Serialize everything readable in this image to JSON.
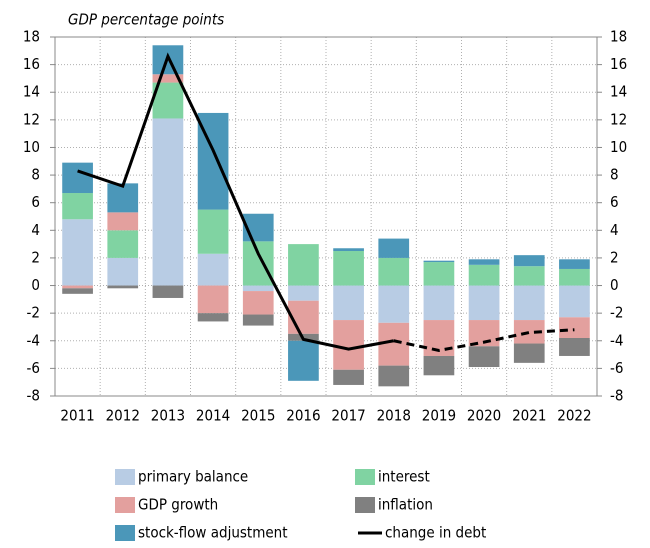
{
  "chart_data": {
    "type": "bar",
    "title": "GDP percentage points",
    "categories": [
      "2011",
      "2012",
      "2013",
      "2014",
      "2015",
      "2016",
      "2017",
      "2018",
      "2019",
      "2020",
      "2021",
      "2022"
    ],
    "series": [
      {
        "name": "primary balance",
        "color": "#b8cce4",
        "values": [
          4.8,
          2.0,
          12.1,
          2.3,
          -0.4,
          -1.1,
          -2.5,
          -2.7,
          -2.5,
          -2.5,
          -2.5,
          -2.3
        ]
      },
      {
        "name": "interest",
        "color": "#80d3a2",
        "values": [
          1.9,
          2.0,
          2.6,
          3.2,
          3.2,
          3.0,
          2.5,
          2.0,
          1.7,
          1.5,
          1.4,
          1.2
        ]
      },
      {
        "name": "GDP growth",
        "color": "#e3a09e",
        "values": [
          -0.2,
          1.3,
          0.6,
          -2.0,
          -1.7,
          -2.4,
          -3.6,
          -3.1,
          -2.6,
          -1.9,
          -1.7,
          -1.5
        ]
      },
      {
        "name": "inflation",
        "color": "#808080",
        "values": [
          -0.4,
          -0.2,
          -0.9,
          -0.6,
          -0.8,
          -0.5,
          -1.1,
          -1.5,
          -1.4,
          -1.5,
          -1.4,
          -1.3
        ]
      },
      {
        "name": "stock-flow adjustment",
        "color": "#4b97b9",
        "values": [
          2.2,
          2.1,
          2.1,
          7.0,
          2.0,
          -2.9,
          0.2,
          1.4,
          0.1,
          0.4,
          0.8,
          0.7
        ]
      }
    ],
    "line": {
      "name": "change in debt",
      "color": "#000000",
      "values": [
        8.3,
        7.2,
        16.6,
        9.8,
        2.3,
        -3.9,
        -4.6,
        -4.0,
        -4.7,
        -4.1,
        -3.4,
        -3.2
      ],
      "dash_from": "2018"
    },
    "ylim": [
      -8,
      18
    ],
    "yticks": [
      -8,
      -6,
      -4,
      -2,
      0,
      2,
      4,
      6,
      8,
      10,
      12,
      14,
      16,
      18
    ],
    "grid": true
  }
}
